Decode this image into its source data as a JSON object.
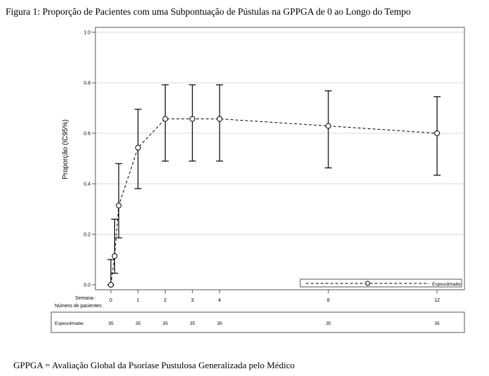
{
  "figure": {
    "title": "Figura 1: Proporção de Pacientes com uma Subpontuação de Pústulas na GPPGA de 0 ao Longo do Tempo",
    "footnote": "GPPGA = Avaliação Global da Psoríase Pustulosa Generalizada pelo Médico"
  },
  "chart_data": {
    "type": "line",
    "title": "",
    "xlabel": "",
    "ylabel": "Proporção (IC95%)",
    "ylim": [
      0.0,
      1.0
    ],
    "y_ticks": [
      0.0,
      0.2,
      0.4,
      0.6,
      0.8,
      1.0
    ],
    "y_tick_labels": [
      "0.0",
      "0.2",
      "0.4",
      "0.6",
      "0.8",
      "1.0"
    ],
    "x_ticks": [
      0,
      1,
      2,
      3,
      4,
      8,
      12
    ],
    "x_tick_labels": [
      "0",
      "1",
      "2",
      "3",
      "4",
      "8",
      "12"
    ],
    "x_axis_label": "Semana :",
    "grid": true,
    "legend_position": "bottom-right",
    "series": [
      {
        "name": "Espesolimabe",
        "color": "#000000",
        "line_style": "dashed",
        "marker": "open-circle",
        "x": [
          0,
          0.14,
          0.29,
          1,
          2,
          3,
          4,
          8,
          12
        ],
        "y": [
          0.0,
          0.114,
          0.314,
          0.543,
          0.657,
          0.657,
          0.657,
          0.629,
          0.6
        ],
        "ci_lower": [
          0.0,
          0.046,
          0.186,
          0.381,
          0.49,
          0.49,
          0.49,
          0.463,
          0.434
        ],
        "ci_upper": [
          0.1,
          0.26,
          0.48,
          0.695,
          0.792,
          0.792,
          0.792,
          0.768,
          0.745
        ]
      }
    ],
    "risk_table": {
      "header": "Número de pacientes:",
      "row_label": "Espesolimabe",
      "x": [
        0,
        1,
        2,
        3,
        4,
        8,
        12
      ],
      "values": [
        "35",
        "35",
        "35",
        "35",
        "35",
        "35",
        "35"
      ]
    }
  }
}
